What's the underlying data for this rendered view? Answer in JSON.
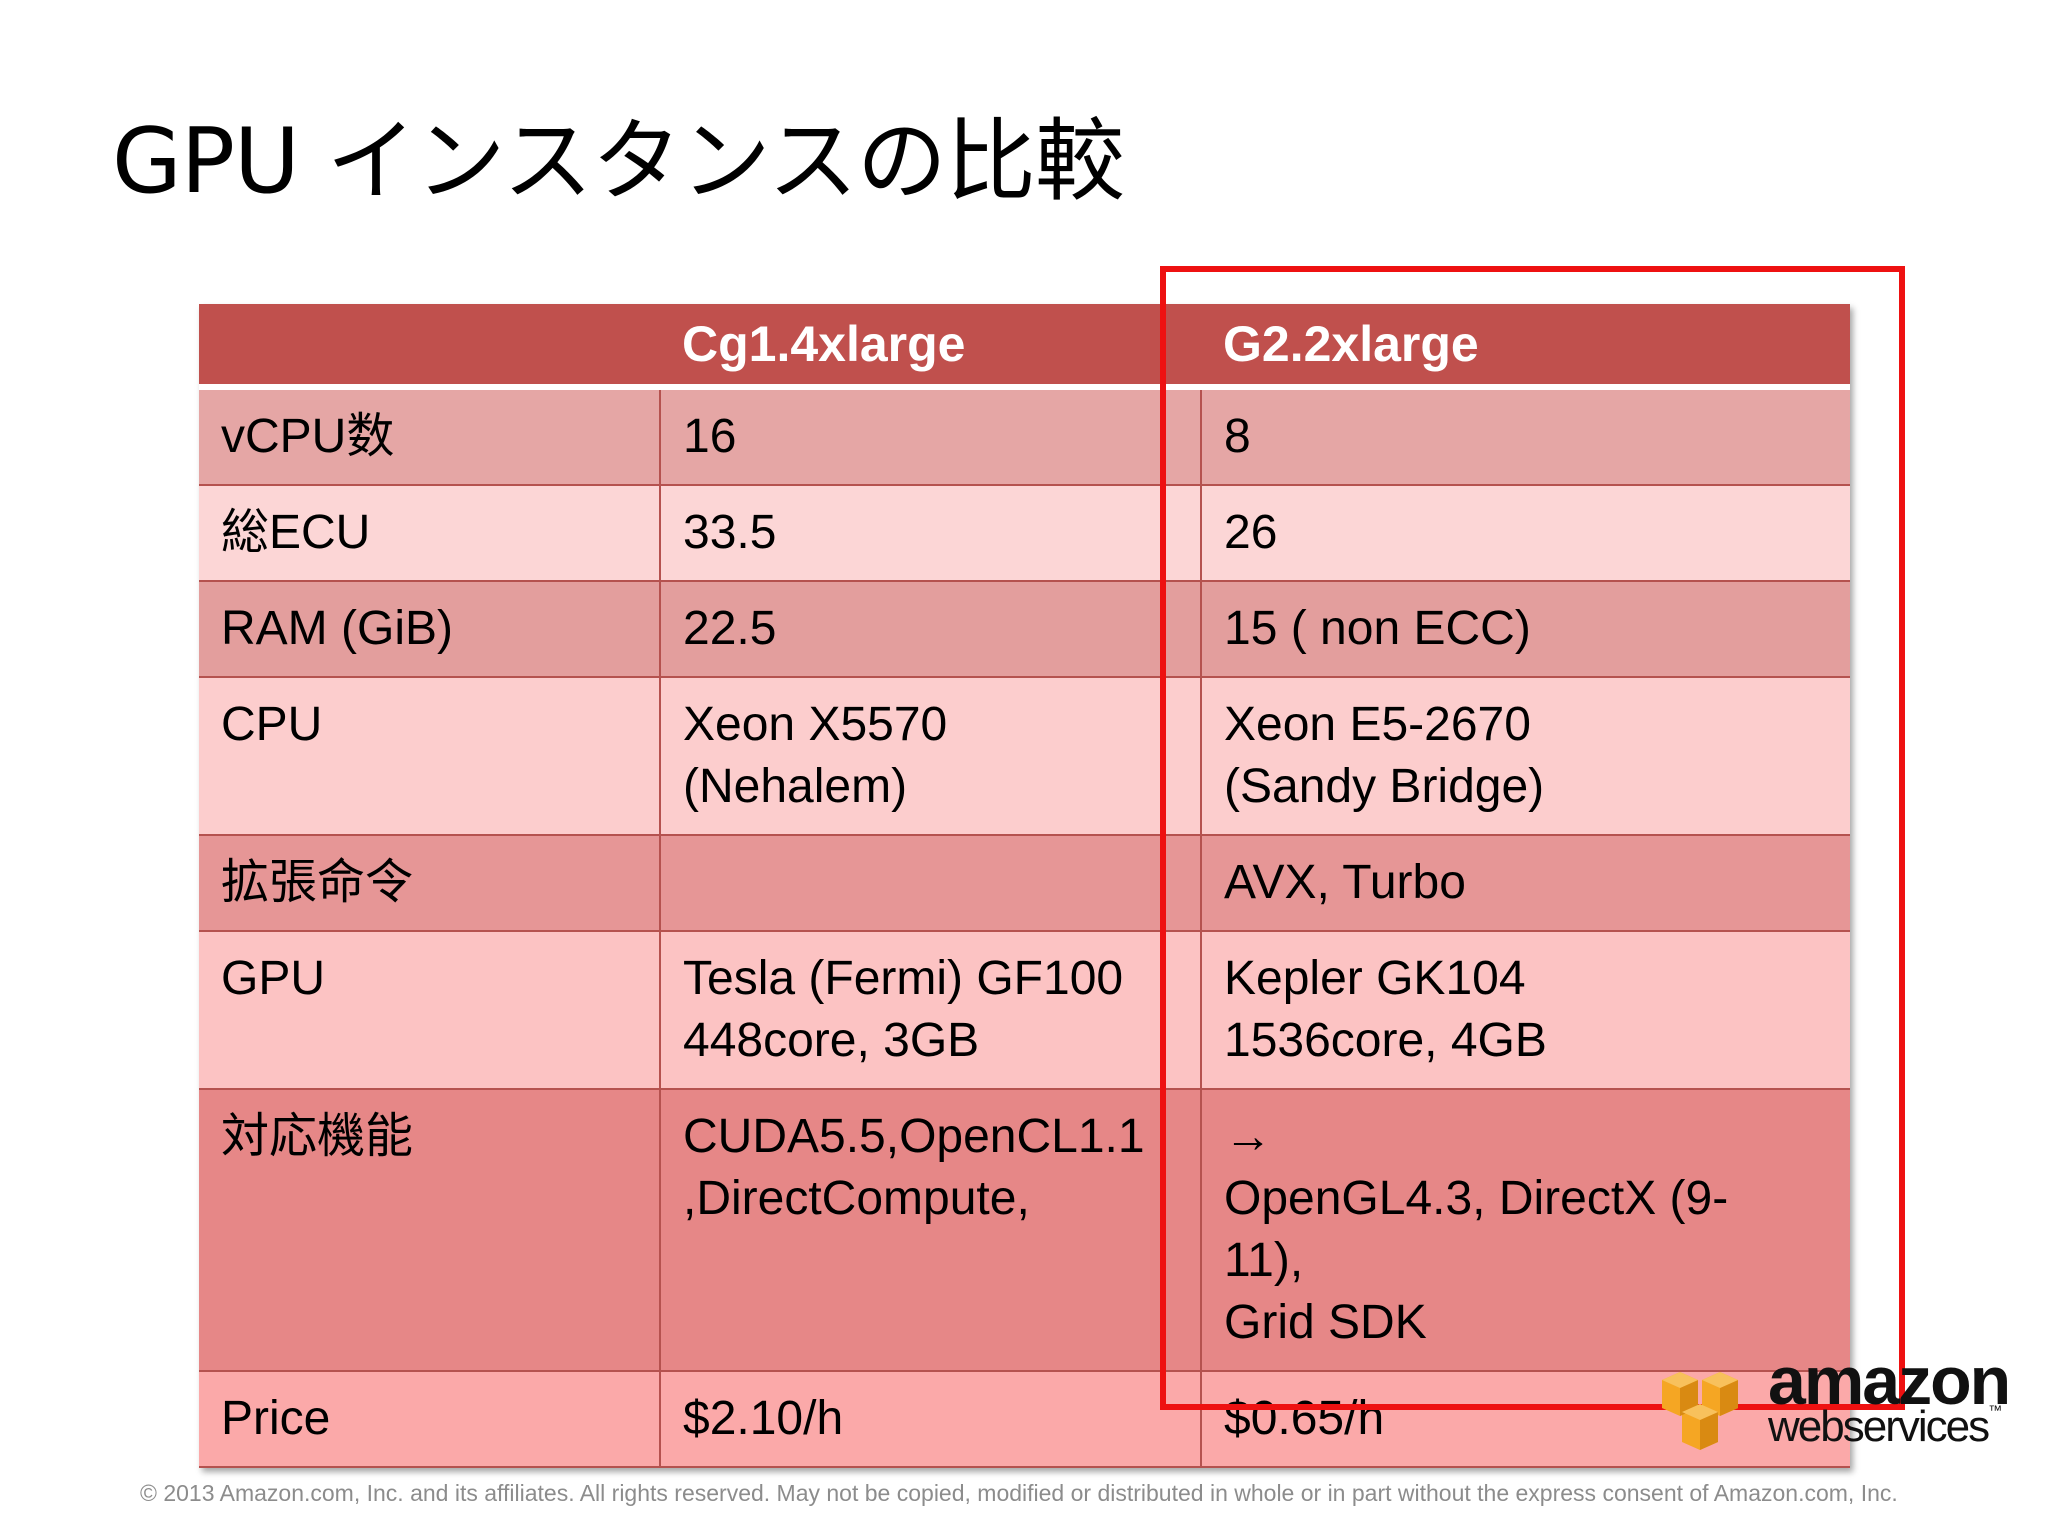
{
  "slide": {
    "title": "GPU インスタンスの比較",
    "footer": "© 2013 Amazon.com, Inc. and its affiliates.  All rights reserved.  May not be copied, modified or distributed in whole or in part without the express consent of Amazon.com, Inc."
  },
  "table": {
    "headers": [
      "",
      "Cg1.4xlarge",
      "G2.2xlarge"
    ],
    "rows": [
      {
        "label": "vCPU数",
        "cg1": [
          "16"
        ],
        "g2": [
          "8"
        ]
      },
      {
        "label": "総ECU",
        "cg1": [
          "33.5"
        ],
        "g2": [
          "26"
        ]
      },
      {
        "label": "RAM (GiB)",
        "cg1": [
          "22.5"
        ],
        "g2": [
          "15 ( non ECC)"
        ]
      },
      {
        "label": "CPU",
        "cg1": [
          "Xeon X5570",
          "(Nehalem)"
        ],
        "g2": [
          "Xeon E5-2670",
          "(Sandy Bridge)"
        ]
      },
      {
        "label": "拡張命令",
        "cg1": [
          ""
        ],
        "g2": [
          "AVX, Turbo"
        ]
      },
      {
        "label": "GPU",
        "cg1": [
          "Tesla (Fermi) GF100",
          "448core, 3GB"
        ],
        "g2": [
          "Kepler  GK104",
          "1536core, 4GB"
        ]
      },
      {
        "label": "対応機能",
        "cg1": [
          "CUDA5.5,OpenCL1.1",
          ",DirectCompute,"
        ],
        "g2": [
          "→",
          "OpenGL4.3, DirectX (9-",
          "11),",
          "Grid SDK"
        ]
      },
      {
        "label": "Price",
        "cg1": [
          "$2.10/h"
        ],
        "g2": [
          "$0.65/h"
        ]
      }
    ]
  },
  "logo": {
    "line1": "amazon",
    "line2": "webservices",
    "tm": "™"
  },
  "colors": {
    "header": "#c0504d",
    "highlight": "#ee1111",
    "logo_orange": "#f5a623"
  }
}
